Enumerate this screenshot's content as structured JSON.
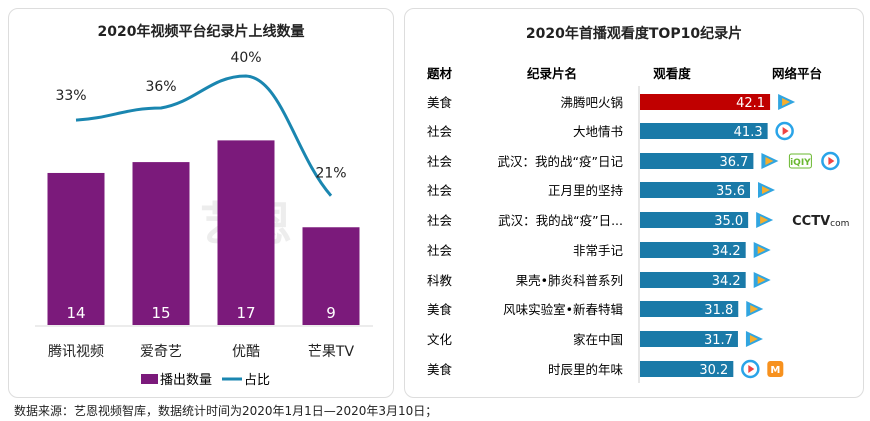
{
  "chart_data": [
    {
      "type": "bar+line",
      "title": "2020年视频平台纪录片上线数量",
      "categories": [
        "腾讯视频",
        "爱奇艺",
        "优酷",
        "芒果TV"
      ],
      "series": [
        {
          "name": "播出数量",
          "type": "bar",
          "color": "#7b1a7b",
          "values": [
            14,
            15,
            17,
            9
          ]
        },
        {
          "name": "占比",
          "type": "line",
          "color": "#1a86b0",
          "values": [
            33,
            36,
            40,
            21
          ],
          "labels": [
            "33%",
            "36%",
            "40%",
            "21%"
          ]
        }
      ],
      "legend": "bottom"
    },
    {
      "type": "table",
      "title": "2020年首播观看度TOP10纪录片",
      "columns": [
        "题材",
        "纪录片名",
        "观看度",
        "网络平台"
      ],
      "rows": [
        {
          "genre": "美食",
          "name": "沸腾吧火锅",
          "value": 42.1,
          "label": "42.1",
          "platforms": [
            "tencent"
          ],
          "highlight": true
        },
        {
          "genre": "社会",
          "name": "大地情书",
          "value": 41.3,
          "label": "41.3",
          "platforms": [
            "youku"
          ]
        },
        {
          "genre": "社会",
          "name": "武汉：我的战“疫”日记",
          "value": 36.7,
          "label": "36.7",
          "platforms": [
            "tencent",
            "iqiyi",
            "youku"
          ]
        },
        {
          "genre": "社会",
          "name": "正月里的坚持",
          "value": 35.6,
          "label": "35.6",
          "platforms": [
            "tencent"
          ]
        },
        {
          "genre": "社会",
          "name": "武汉：我的战“疫”日...",
          "value": 35.0,
          "label": "35.0",
          "platforms": [
            "tencent",
            "cctv"
          ]
        },
        {
          "genre": "社会",
          "name": "非常手记",
          "value": 34.2,
          "label": "34.2",
          "platforms": [
            "tencent"
          ]
        },
        {
          "genre": "科教",
          "name": "果壳•肺炎科普系列",
          "value": 34.2,
          "label": "34.2",
          "platforms": [
            "tencent"
          ]
        },
        {
          "genre": "美食",
          "name": "风味实验室•新春特辑",
          "value": 31.8,
          "label": "31.8",
          "platforms": [
            "tencent"
          ]
        },
        {
          "genre": "文化",
          "name": "家在中国",
          "value": 31.7,
          "label": "31.7",
          "platforms": [
            "tencent"
          ]
        },
        {
          "genre": "美食",
          "name": "时辰里的年味",
          "value": 30.2,
          "label": "30.2",
          "platforms": [
            "youku",
            "mgtv"
          ]
        }
      ],
      "colors": {
        "highlight": "#c00000",
        "bar": "#1a7aa8"
      }
    }
  ],
  "watermark": "艺恩 endata",
  "footer": "数据来源：艺恩视频智库，数据统计时间为2020年1月1日—2020年3月10日；"
}
